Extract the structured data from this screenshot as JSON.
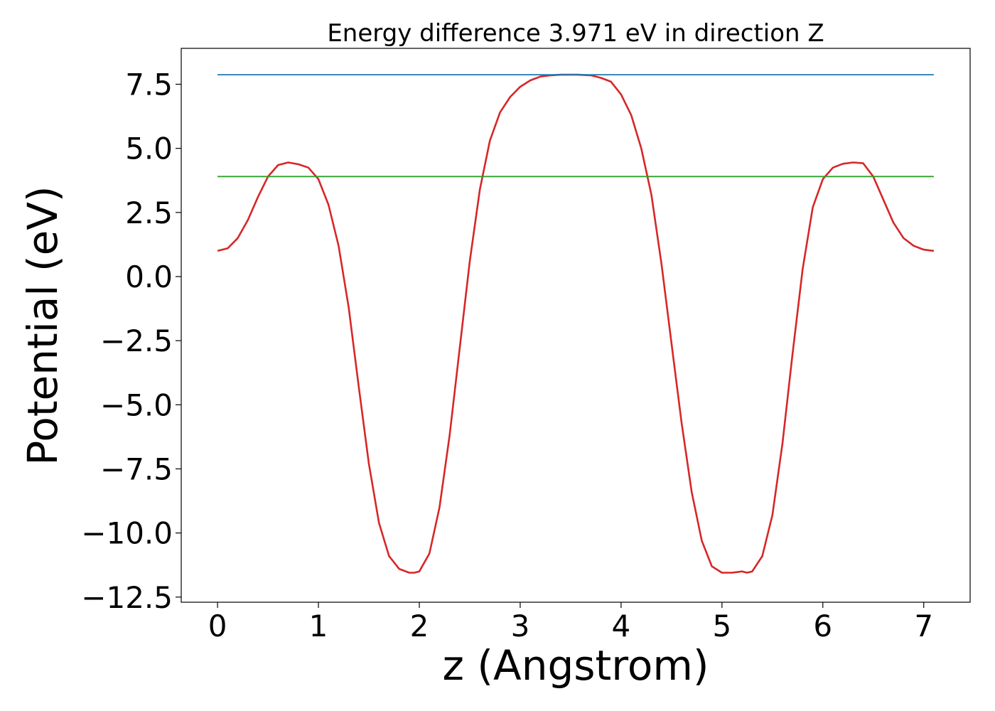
{
  "chart_data": {
    "type": "line",
    "title": "Energy difference 3.971 eV in direction Z",
    "xlabel": "z (Angstrom)",
    "ylabel": "Potential (eV)",
    "xlim": [
      -0.36,
      7.46
    ],
    "ylim": [
      -12.7,
      8.9
    ],
    "xticks": [
      0,
      1,
      2,
      3,
      4,
      5,
      6,
      7
    ],
    "xtick_labels": [
      "0",
      "1",
      "2",
      "3",
      "4",
      "5",
      "6",
      "7"
    ],
    "yticks": [
      7.5,
      5.0,
      2.5,
      0.0,
      -2.5,
      -5.0,
      -7.5,
      -10.0,
      -12.5
    ],
    "ytick_labels": [
      "7.5",
      "5.0",
      "2.5",
      "0.0",
      "−2.5",
      "−5.0",
      "−7.5",
      "−10.0",
      "−12.5"
    ],
    "grid": false,
    "series": [
      {
        "color": "#d62728",
        "x": [
          0.0,
          0.1,
          0.2,
          0.3,
          0.4,
          0.5,
          0.6,
          0.7,
          0.8,
          0.9,
          1.0,
          1.1,
          1.2,
          1.3,
          1.4,
          1.5,
          1.6,
          1.7,
          1.8,
          1.9,
          1.95,
          2.0,
          2.1,
          2.2,
          2.3,
          2.4,
          2.5,
          2.6,
          2.7,
          2.8,
          2.9,
          3.0,
          3.1,
          3.2,
          3.3,
          3.4,
          3.5,
          3.57,
          3.7,
          3.8,
          3.9,
          4.0,
          4.1,
          4.2,
          4.3,
          4.4,
          4.5,
          4.6,
          4.7,
          4.8,
          4.9,
          5.0,
          5.1,
          5.2,
          5.25,
          5.3,
          5.4,
          5.5,
          5.6,
          5.7,
          5.8,
          5.9,
          6.0,
          6.1,
          6.2,
          6.3,
          6.4,
          6.5,
          6.6,
          6.7,
          6.8,
          6.9,
          7.0,
          7.1
        ],
        "y": [
          1.0,
          1.1,
          1.5,
          2.2,
          3.1,
          3.9,
          4.35,
          4.45,
          4.38,
          4.25,
          3.8,
          2.8,
          1.2,
          -1.2,
          -4.3,
          -7.3,
          -9.6,
          -10.9,
          -11.4,
          -11.55,
          -11.55,
          -11.5,
          -10.8,
          -9.0,
          -6.2,
          -2.8,
          0.6,
          3.4,
          5.3,
          6.4,
          7.0,
          7.4,
          7.65,
          7.8,
          7.85,
          7.87,
          7.87,
          7.87,
          7.85,
          7.75,
          7.6,
          7.1,
          6.3,
          5.0,
          3.2,
          0.5,
          -2.6,
          -5.7,
          -8.4,
          -10.3,
          -11.3,
          -11.55,
          -11.55,
          -11.5,
          -11.55,
          -11.5,
          -10.9,
          -9.3,
          -6.5,
          -3.0,
          0.3,
          2.7,
          3.8,
          4.25,
          4.4,
          4.45,
          4.42,
          3.9,
          3.0,
          2.1,
          1.5,
          1.2,
          1.05,
          1.0
        ]
      },
      {
        "color": "#1f77b4",
        "x": [
          0.0,
          7.1
        ],
        "y": [
          7.87,
          7.87
        ]
      },
      {
        "color": "#2ca02c",
        "x": [
          0.0,
          7.1
        ],
        "y": [
          3.9,
          3.9
        ]
      }
    ]
  }
}
